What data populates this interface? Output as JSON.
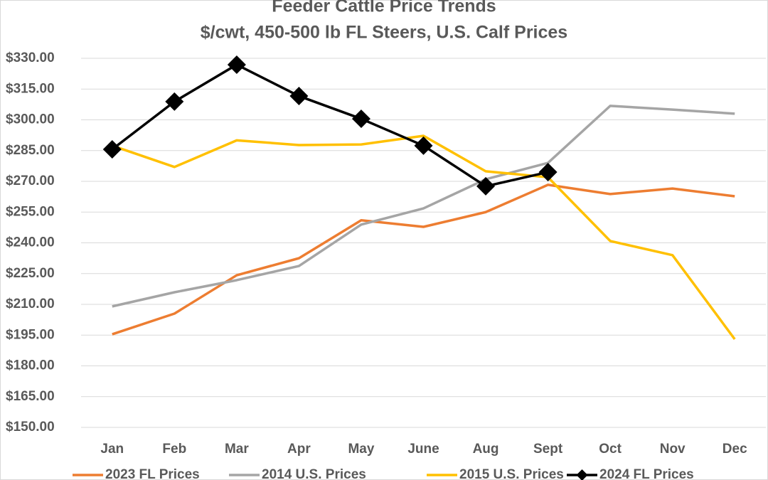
{
  "chart_data": {
    "type": "line",
    "title": "Feeder Cattle Price Trends",
    "subtitle": "$/cwt, 450-500 lb FL Steers, U.S. Calf Prices",
    "categories": [
      "Jan",
      "Feb",
      "Mar",
      "Apr",
      "May",
      "June",
      "Aug",
      "Sept",
      "Oct",
      "Nov",
      "Dec"
    ],
    "series": [
      {
        "name": "2023 FL Prices",
        "color": "#ED7D31",
        "values": [
          195.4,
          205.5,
          224.2,
          232.5,
          251,
          247.8,
          255,
          268.3,
          263.8,
          266.5,
          262.7
        ]
      },
      {
        "name": "2014 U.S. Prices",
        "color": "#A5A5A5",
        "values": [
          209,
          215.9,
          221.8,
          228.7,
          248.9,
          256.8,
          271,
          279,
          306.8,
          305,
          303
        ]
      },
      {
        "name": "2015 U.S. Prices",
        "color": "#FFC000",
        "values": [
          287.4,
          277,
          290,
          287.7,
          288,
          292.2,
          274.9,
          272,
          240.9,
          234,
          193
        ]
      },
      {
        "name": "2024 FL Prices",
        "color": "#000000",
        "marker": "diamond",
        "values": [
          285.6,
          308.9,
          326.9,
          311.6,
          300.5,
          287.4,
          267.6,
          274.5,
          null,
          null,
          null
        ]
      }
    ],
    "ylim": [
      150,
      330
    ],
    "yticks": [
      {
        "value": 150,
        "label": "$150.00"
      },
      {
        "value": 165,
        "label": "$165.00"
      },
      {
        "value": 180,
        "label": "$180.00"
      },
      {
        "value": 195,
        "label": "$195.00"
      },
      {
        "value": 210,
        "label": "$210.00"
      },
      {
        "value": 225,
        "label": "$225.00"
      },
      {
        "value": 240,
        "label": "$240.00"
      },
      {
        "value": 255,
        "label": "$255.00"
      },
      {
        "value": 270,
        "label": "$270.00"
      },
      {
        "value": 285,
        "label": "$285.00"
      },
      {
        "value": 300,
        "label": "$300.00"
      },
      {
        "value": 315,
        "label": "$315.00"
      },
      {
        "value": 330,
        "label": "$330.00"
      }
    ],
    "grid": true,
    "legend": "bottom"
  }
}
